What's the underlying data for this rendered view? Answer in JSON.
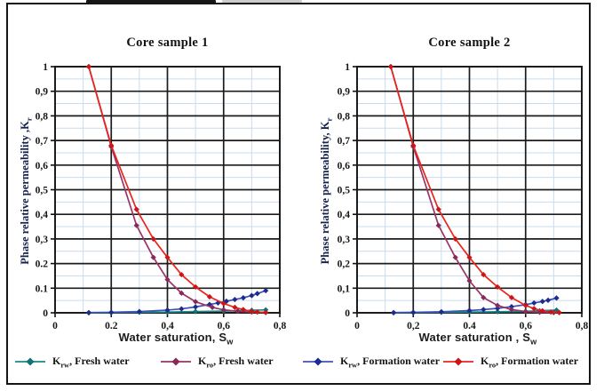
{
  "figure": {
    "background": "#ffffff",
    "frame_color": "#141414"
  },
  "chart_data": [
    {
      "type": "line",
      "title": "Core sample 1",
      "ylabel": {
        "text": "Phase relative permeability ,K",
        "sub": "r"
      },
      "xlabel": {
        "text": "Water saturation, S",
        "sub": "w"
      },
      "xlim": [
        0,
        0.8
      ],
      "ylim": [
        0,
        1
      ],
      "grid": {
        "major_color": "#1c1c1c",
        "minor_color": "#c9dced",
        "x_major": [
          0.2,
          0.4,
          0.6
        ],
        "x_minor": [
          0.1,
          0.3,
          0.5,
          0.7
        ]
      },
      "x_ticks": {
        "values": [
          0,
          0.2,
          0.4,
          0.6,
          0.8
        ],
        "labels": [
          "0",
          "0.2",
          "0,4",
          "0,6",
          "0,8"
        ]
      },
      "y_ticks": {
        "values": [
          1,
          0.9,
          0.8,
          0.7,
          0.6,
          0.5,
          0.4,
          0.3,
          0.2,
          0.1,
          0
        ],
        "labels": [
          "1",
          "0,9",
          "0,8",
          "0,7",
          "0,6",
          "0,5",
          "0,4",
          "0,3",
          "0.2",
          "0.1",
          "0"
        ]
      },
      "legend_position": "bottom",
      "series": [
        {
          "id": "krw-fresh-water",
          "name": "Krw, Fresh water",
          "color": "#17898c",
          "marker": "#0e7276",
          "points": [
            [
              0.12,
              0.0
            ],
            [
              0.2,
              0.001
            ],
            [
              0.3,
              0.002
            ],
            [
              0.4,
              0.003
            ],
            [
              0.5,
              0.005
            ],
            [
              0.6,
              0.007
            ],
            [
              0.65,
              0.008
            ],
            [
              0.7,
              0.01
            ],
            [
              0.75,
              0.012
            ]
          ]
        },
        {
          "id": "krw-formation-water",
          "name": "Krw, Formation water",
          "color": "#4052b8",
          "marker": "#1d2b8f",
          "points": [
            [
              0.12,
              0.001
            ],
            [
              0.2,
              0.002
            ],
            [
              0.3,
              0.005
            ],
            [
              0.4,
              0.011
            ],
            [
              0.45,
              0.016
            ],
            [
              0.5,
              0.024
            ],
            [
              0.55,
              0.034
            ],
            [
              0.58,
              0.04
            ],
            [
              0.61,
              0.047
            ],
            [
              0.64,
              0.054
            ],
            [
              0.67,
              0.061
            ],
            [
              0.7,
              0.07
            ],
            [
              0.72,
              0.078
            ],
            [
              0.75,
              0.09
            ]
          ]
        },
        {
          "id": "kro-fresh-water",
          "name": "Kro, Fresh water",
          "color": "#9a3366",
          "marker": "#872a59",
          "points": [
            [
              0.12,
              1.0
            ],
            [
              0.2,
              0.675
            ],
            [
              0.29,
              0.355
            ],
            [
              0.35,
              0.225
            ],
            [
              0.4,
              0.135
            ],
            [
              0.45,
              0.08
            ],
            [
              0.5,
              0.045
            ],
            [
              0.56,
              0.022
            ],
            [
              0.6,
              0.012
            ],
            [
              0.65,
              0.006
            ],
            [
              0.7,
              0.003
            ],
            [
              0.75,
              0.002
            ]
          ]
        },
        {
          "id": "kro-formation-water",
          "name": "Kro, Formation water",
          "color": "#e8251d",
          "marker": "#cd1414",
          "points": [
            [
              0.12,
              1.0
            ],
            [
              0.2,
              0.68
            ],
            [
              0.29,
              0.42
            ],
            [
              0.35,
              0.3
            ],
            [
              0.4,
              0.225
            ],
            [
              0.45,
              0.155
            ],
            [
              0.5,
              0.105
            ],
            [
              0.55,
              0.065
            ],
            [
              0.6,
              0.038
            ],
            [
              0.64,
              0.022
            ],
            [
              0.67,
              0.013
            ],
            [
              0.7,
              0.006
            ],
            [
              0.72,
              0.003
            ],
            [
              0.75,
              0.001
            ]
          ]
        }
      ]
    },
    {
      "type": "line",
      "title": "Core sample 2",
      "ylabel": {
        "text": "Phase relative permeability, K",
        "sub": "r"
      },
      "xlabel": {
        "text": "Water saturation , S",
        "sub": "w"
      },
      "xlim": [
        0,
        0.8
      ],
      "ylim": [
        0,
        1
      ],
      "grid": {
        "major_color": "#1c1c1c",
        "minor_color": "#c9dced",
        "x_major": [
          0.2,
          0.4,
          0.6
        ],
        "x_minor": [
          0.1,
          0.3,
          0.5,
          0.7
        ]
      },
      "x_ticks": {
        "values": [
          0,
          0.2,
          0.4,
          0.6,
          0.8
        ],
        "labels": [
          "0",
          "0,2",
          "0.4",
          "0,6",
          "0,8"
        ]
      },
      "y_ticks": {
        "values": [
          1,
          0.9,
          0.8,
          0.7,
          0.6,
          0.5,
          0.4,
          0.3,
          0.2,
          0.1,
          0
        ],
        "labels": [
          "1",
          "0,9",
          "0,8",
          "0,7",
          "0,6",
          "0,5",
          "0,4",
          "0,3",
          "0,2",
          "0,1",
          "0"
        ]
      },
      "legend_position": "bottom",
      "series": [
        {
          "id": "krw-fresh-water",
          "name": "Krw, Fresh water",
          "color": "#17898c",
          "marker": "#0e7276",
          "points": [
            [
              0.13,
              0.0
            ],
            [
              0.2,
              0.001
            ],
            [
              0.3,
              0.002
            ],
            [
              0.4,
              0.003
            ],
            [
              0.5,
              0.004
            ],
            [
              0.6,
              0.006
            ],
            [
              0.65,
              0.008
            ],
            [
              0.71,
              0.011
            ]
          ]
        },
        {
          "id": "krw-formation-water",
          "name": "Krw, Formation water",
          "color": "#4052b8",
          "marker": "#1d2b8f",
          "points": [
            [
              0.13,
              0.001
            ],
            [
              0.2,
              0.002
            ],
            [
              0.3,
              0.004
            ],
            [
              0.4,
              0.009
            ],
            [
              0.45,
              0.013
            ],
            [
              0.5,
              0.018
            ],
            [
              0.55,
              0.025
            ],
            [
              0.6,
              0.033
            ],
            [
              0.63,
              0.04
            ],
            [
              0.66,
              0.046
            ],
            [
              0.68,
              0.051
            ],
            [
              0.71,
              0.06
            ]
          ]
        },
        {
          "id": "kro-fresh-water",
          "name": "Kro, Fresh water",
          "color": "#9a3366",
          "marker": "#872a59",
          "points": [
            [
              0.12,
              1.0
            ],
            [
              0.2,
              0.675
            ],
            [
              0.29,
              0.355
            ],
            [
              0.35,
              0.225
            ],
            [
              0.4,
              0.13
            ],
            [
              0.45,
              0.062
            ],
            [
              0.5,
              0.03
            ],
            [
              0.55,
              0.013
            ],
            [
              0.6,
              0.005
            ],
            [
              0.65,
              0.002
            ],
            [
              0.7,
              0.001
            ]
          ]
        },
        {
          "id": "kro-formation-water",
          "name": "Kro, Formation water",
          "color": "#e8251d",
          "marker": "#cd1414",
          "points": [
            [
              0.12,
              1.0
            ],
            [
              0.2,
              0.68
            ],
            [
              0.29,
              0.42
            ],
            [
              0.35,
              0.3
            ],
            [
              0.4,
              0.225
            ],
            [
              0.45,
              0.155
            ],
            [
              0.5,
              0.105
            ],
            [
              0.55,
              0.062
            ],
            [
              0.6,
              0.03
            ],
            [
              0.63,
              0.017
            ],
            [
              0.66,
              0.008
            ],
            [
              0.69,
              0.003
            ],
            [
              0.72,
              0.001
            ]
          ]
        }
      ]
    }
  ],
  "legend": {
    "items": [
      {
        "k": "K",
        "sub": "rw",
        "rest": ", Fresh water",
        "color": "#17898c",
        "marker": "#0e7276"
      },
      {
        "k": "K",
        "sub": "ro",
        "rest": ", Fresh water",
        "color": "#9a3366",
        "marker": "#872a59"
      },
      {
        "k": "K",
        "sub": "rw",
        "rest": ", Formation water",
        "color": "#4052b8",
        "marker": "#1d2b8f"
      },
      {
        "k": "K",
        "sub": "ro",
        "rest": ", Formation water",
        "color": "#e8251d",
        "marker": "#cd1414"
      }
    ]
  }
}
